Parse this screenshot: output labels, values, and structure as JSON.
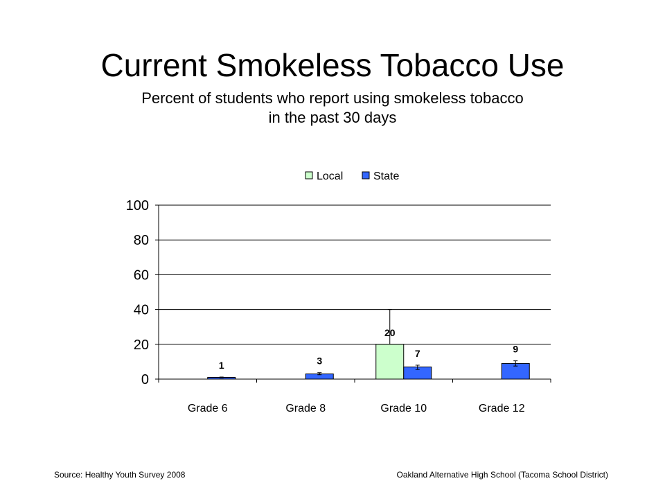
{
  "slide": {
    "title": "Current Smokeless Tobacco Use",
    "subtitle_line1": "Percent of students who report using smokeless tobacco",
    "subtitle_line2": "in the past 30 days"
  },
  "footer": {
    "source": "Source: Healthy Youth Survey 2008",
    "school": "Oakland Alternative High School (Tacoma School District)"
  },
  "colors": {
    "local": "#ccffcc",
    "state": "#3366ff",
    "axis": "#000000"
  },
  "chart_data": {
    "type": "bar",
    "categories": [
      "Grade 6",
      "Grade 8",
      "Grade 10",
      "Grade 12"
    ],
    "series": [
      {
        "name": "Local",
        "values": [
          null,
          null,
          20,
          null
        ],
        "labels": [
          "",
          "",
          "20",
          ""
        ],
        "error_upper": [
          null,
          null,
          40,
          null
        ],
        "error_lower": [
          null,
          null,
          null,
          null
        ]
      },
      {
        "name": "State",
        "values": [
          1,
          3,
          7,
          9
        ],
        "labels": [
          "1",
          "3",
          "7",
          "9"
        ],
        "error_upper": [
          1.2,
          3.7,
          8,
          10.5
        ],
        "error_lower": [
          0.8,
          2.5,
          5.5,
          7.5
        ]
      }
    ],
    "ylim": [
      0,
      100
    ],
    "yticks": [
      0,
      20,
      40,
      60,
      80,
      100
    ],
    "ytick_labels": [
      "0",
      "20",
      "40",
      "60",
      "80",
      "100"
    ],
    "grid": true,
    "legend_position": "top"
  }
}
